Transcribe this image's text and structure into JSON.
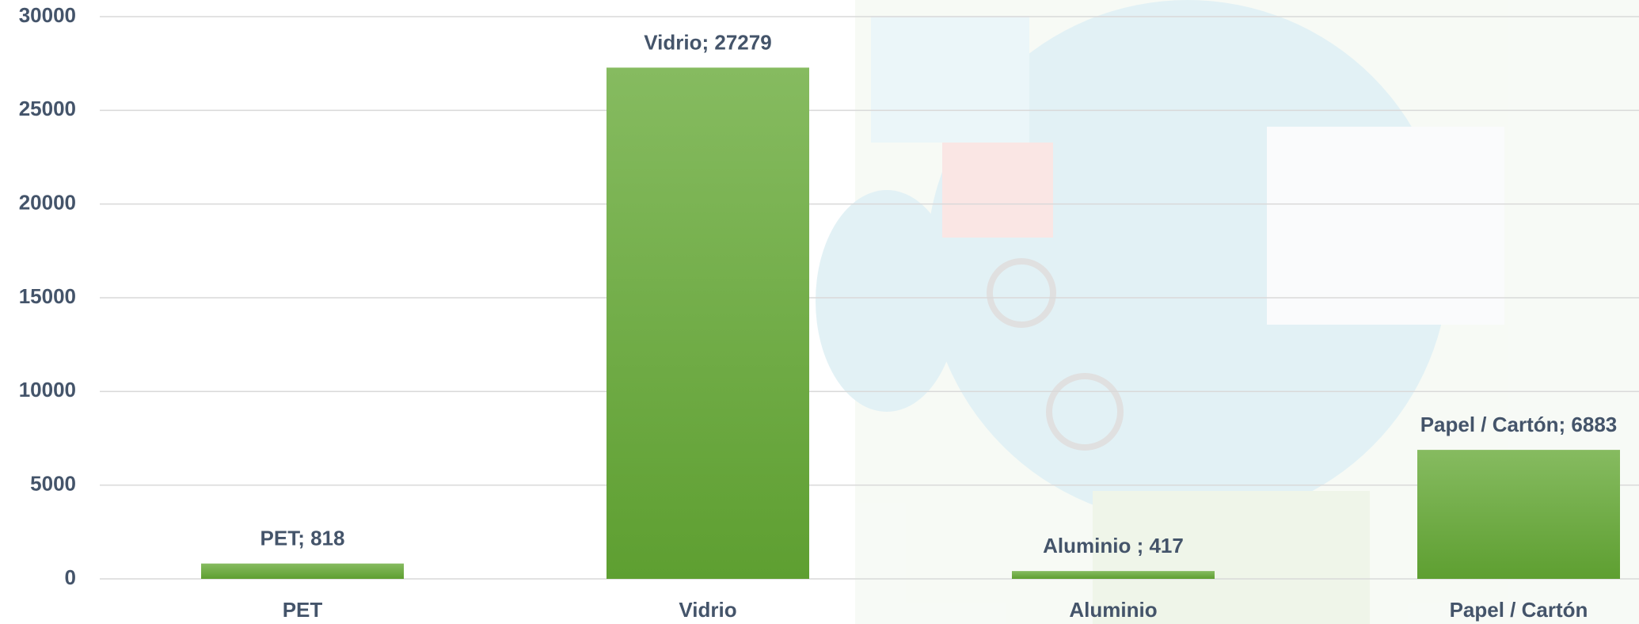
{
  "chart_data": {
    "type": "bar",
    "categories": [
      "PET",
      "Vidrio",
      "Aluminio",
      "Papel / Cartón"
    ],
    "values": [
      818,
      27279,
      417,
      6883
    ],
    "value_labels": [
      "PET; 818",
      "Vidrio; 27279",
      "Aluminio ; 417",
      "Papel / Cartón; 6883"
    ],
    "color": "#70ad47",
    "ylim": [
      0,
      30000
    ],
    "yticks": [
      0,
      5000,
      10000,
      15000,
      20000,
      25000,
      30000
    ],
    "grid": true
  }
}
